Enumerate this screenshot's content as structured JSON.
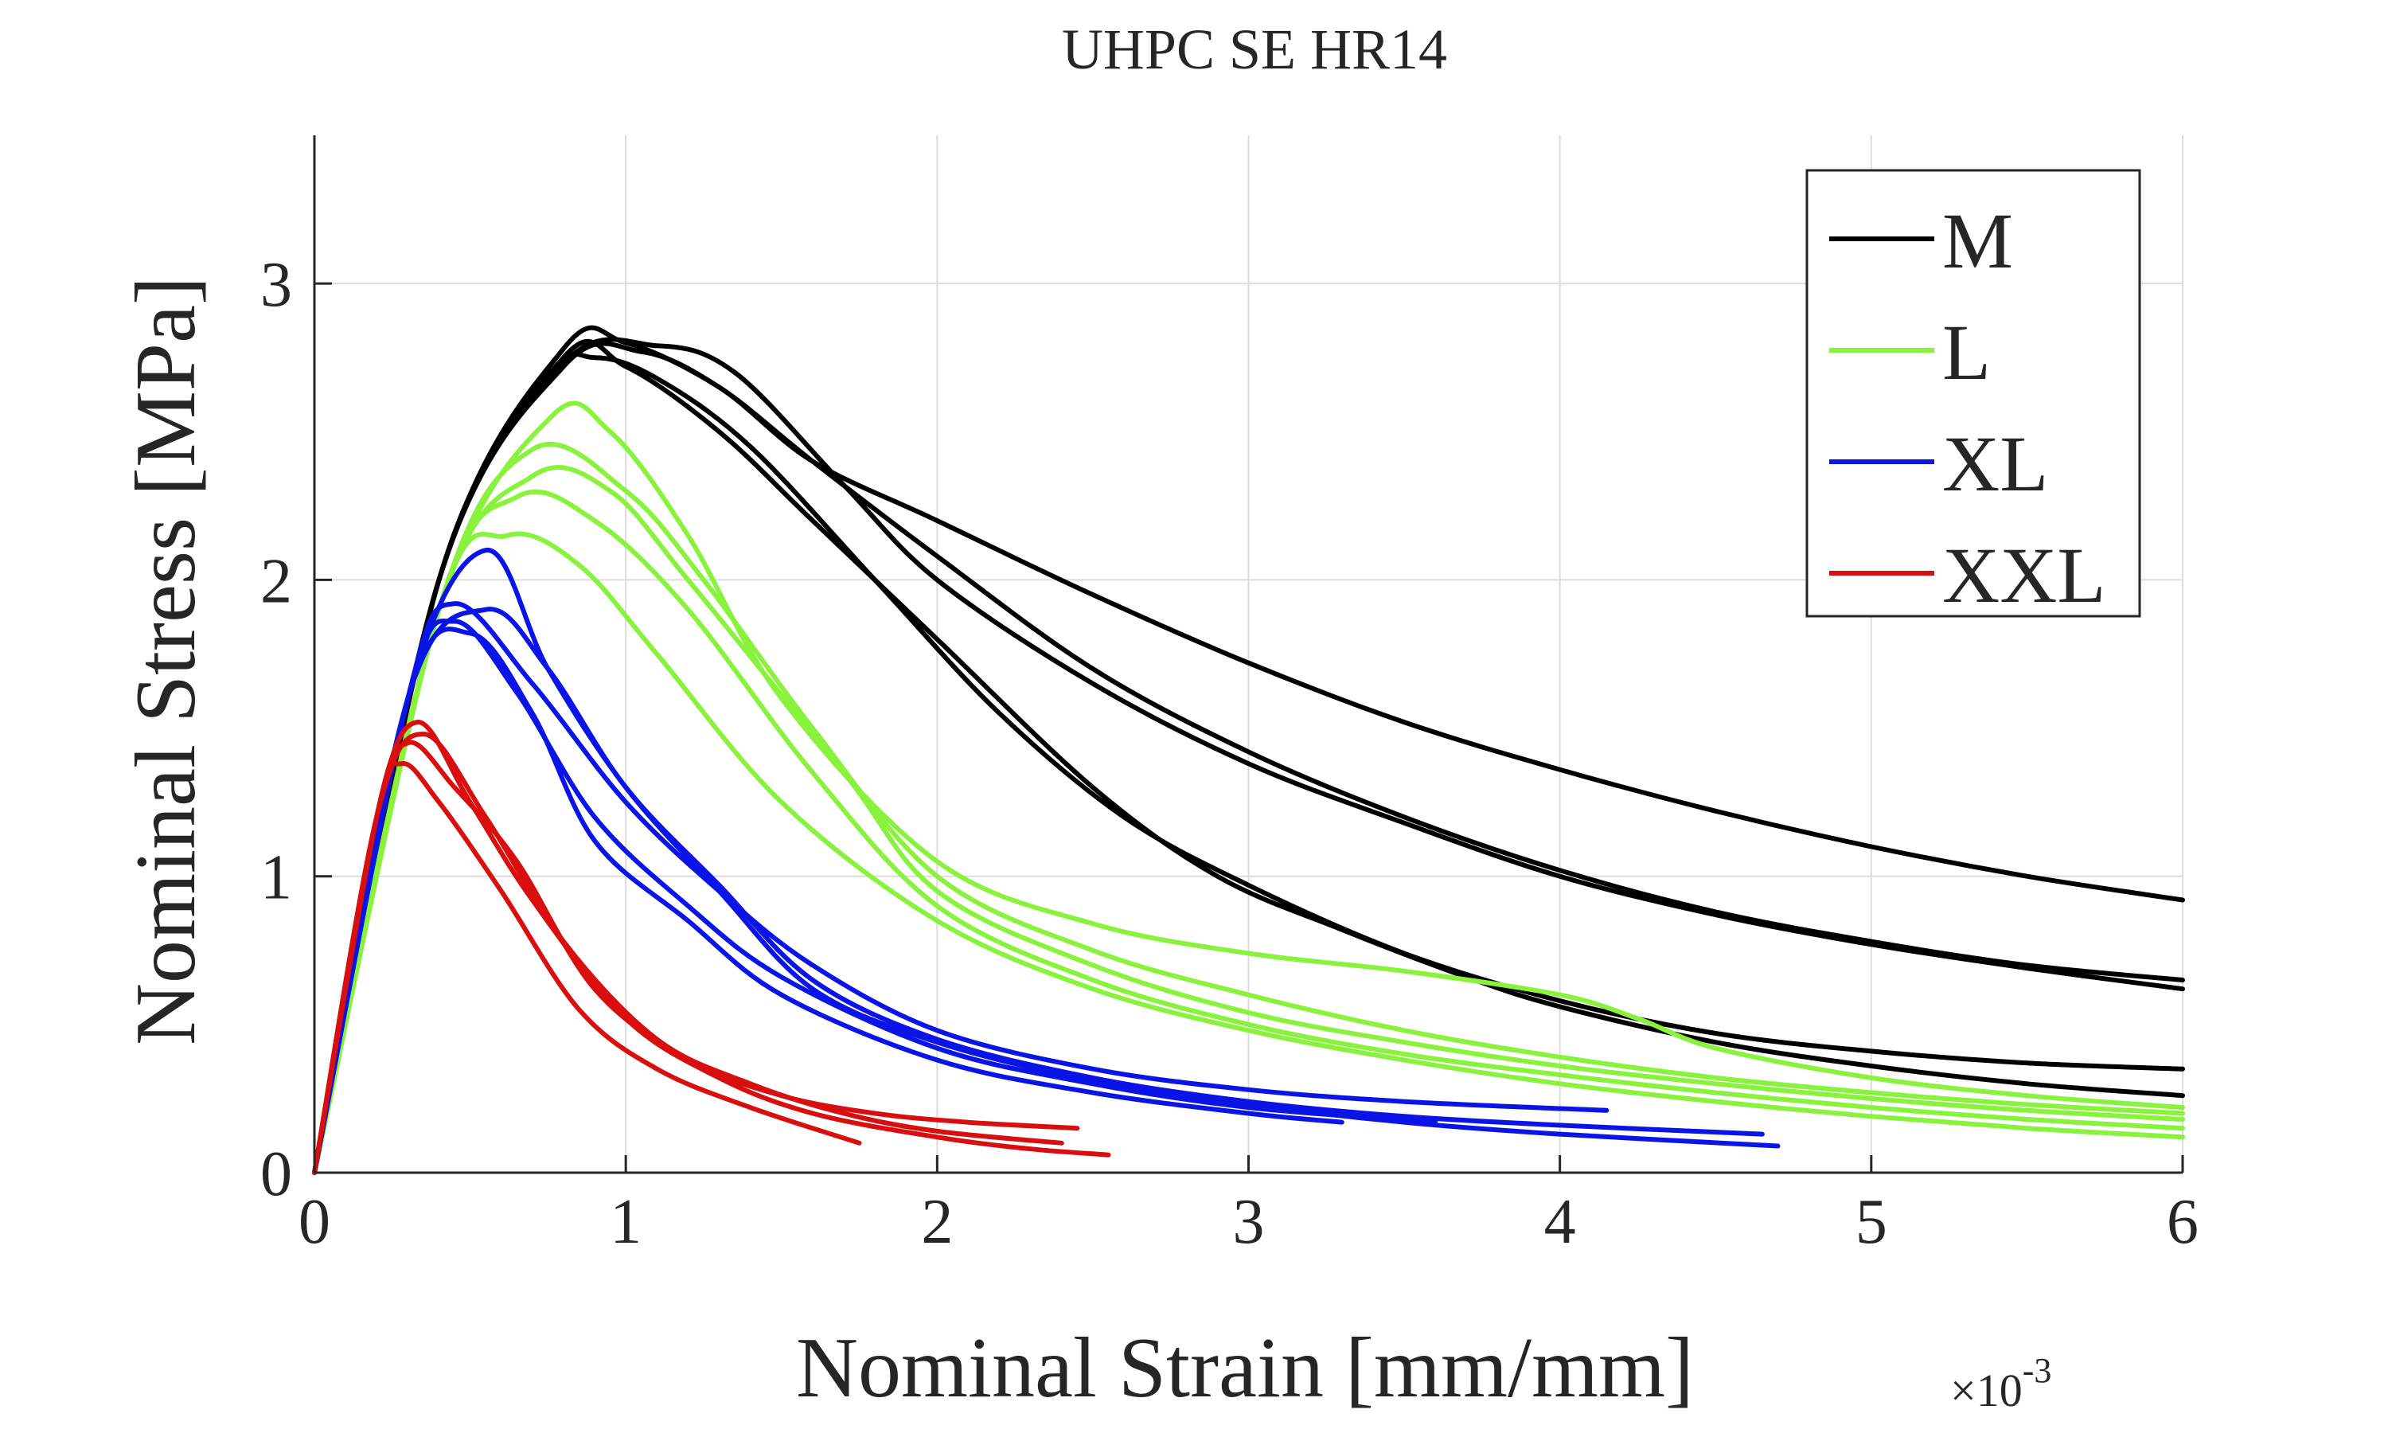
{
  "chart_data": {
    "type": "line",
    "title": "UHPC SE HR14",
    "xlabel": "Nominal Strain [mm/mm]",
    "xlabel_multiplier": {
      "base": "×10",
      "exponent": "-3"
    },
    "ylabel": "Nominal Stress [MPa]",
    "xlim": [
      0,
      6
    ],
    "ylim": [
      0,
      3.5
    ],
    "x_unit_scale": "1e-3",
    "xticks": [
      0,
      1,
      2,
      3,
      4,
      5,
      6
    ],
    "xtick_labels": [
      "0",
      "1",
      "2",
      "3",
      "4",
      "5",
      "6"
    ],
    "yticks": [
      0,
      1,
      2,
      3
    ],
    "ytick_labels": [
      "0",
      "1",
      "2",
      "3"
    ],
    "grid": true,
    "legend_position": "top-right",
    "series": [
      {
        "name": "M",
        "color": "#000000",
        "show_in_legend": true,
        "x": [
          0,
          0.4,
          0.8,
          1.0,
          1.3,
          1.6,
          2.0,
          2.5,
          3.0,
          3.5,
          4.0,
          4.5,
          5.0,
          5.5,
          6.0
        ],
        "y": [
          0,
          2.0,
          2.78,
          2.8,
          2.65,
          2.4,
          2.2,
          1.95,
          1.72,
          1.52,
          1.36,
          1.22,
          1.1,
          1.0,
          0.92
        ]
      },
      {
        "name": "M",
        "color": "#000000",
        "show_in_legend": false,
        "x": [
          0,
          0.4,
          0.8,
          1.05,
          1.3,
          1.6,
          2.0,
          2.5,
          3.0,
          3.5,
          4.0,
          4.5,
          5.0,
          5.5,
          6.0
        ],
        "y": [
          0,
          2.0,
          2.72,
          2.77,
          2.65,
          2.4,
          2.08,
          1.7,
          1.42,
          1.2,
          1.02,
          0.88,
          0.78,
          0.7,
          0.65
        ]
      },
      {
        "name": "M",
        "color": "#000000",
        "show_in_legend": false,
        "x": [
          0,
          0.4,
          0.8,
          1.1,
          1.35,
          1.7,
          2.0,
          2.5,
          3.0,
          3.5,
          4.0,
          4.5,
          5.0,
          5.5,
          6.0
        ],
        "y": [
          0,
          2.0,
          2.73,
          2.79,
          2.7,
          2.32,
          2.0,
          1.65,
          1.38,
          1.18,
          1.0,
          0.87,
          0.77,
          0.69,
          0.62
        ]
      },
      {
        "name": "M",
        "color": "#000000",
        "show_in_legend": false,
        "x": [
          0,
          0.4,
          0.75,
          0.9,
          1.1,
          1.4,
          1.8,
          2.2,
          2.6,
          3.0,
          3.5,
          4.0,
          4.5,
          5.0,
          5.5,
          6.0
        ],
        "y": [
          0,
          2.0,
          2.68,
          2.75,
          2.68,
          2.45,
          2.0,
          1.55,
          1.2,
          0.97,
          0.74,
          0.58,
          0.47,
          0.41,
          0.37,
          0.35
        ]
      },
      {
        "name": "M",
        "color": "#000000",
        "show_in_legend": false,
        "x": [
          0,
          0.4,
          0.8,
          1.0,
          1.3,
          1.6,
          2.0,
          2.5,
          2.9,
          3.3,
          3.7,
          4.0,
          4.5,
          5.0,
          5.5,
          6.0
        ],
        "y": [
          0,
          2.0,
          2.75,
          2.72,
          2.5,
          2.2,
          1.8,
          1.3,
          1.0,
          0.82,
          0.66,
          0.56,
          0.44,
          0.36,
          0.3,
          0.26
        ]
      },
      {
        "name": "L",
        "color": "#88f23c",
        "show_in_legend": true,
        "x": [
          0,
          0.4,
          0.76,
          0.95,
          1.2,
          1.5,
          2.0,
          2.5,
          3.0,
          3.5,
          4.0,
          4.25,
          4.5,
          5.0,
          5.5,
          6.0
        ],
        "y": [
          0,
          1.9,
          2.55,
          2.5,
          2.15,
          1.6,
          1.05,
          0.84,
          0.74,
          0.68,
          0.6,
          0.52,
          0.42,
          0.32,
          0.26,
          0.22
        ]
      },
      {
        "name": "L",
        "color": "#88f23c",
        "show_in_legend": false,
        "x": [
          0,
          0.4,
          0.7,
          1.0,
          1.25,
          1.6,
          2.0,
          2.5,
          3.0,
          3.5,
          4.0,
          4.5,
          5.0,
          5.5,
          6.0
        ],
        "y": [
          0,
          1.9,
          2.44,
          2.3,
          2.0,
          1.5,
          1.0,
          0.75,
          0.6,
          0.48,
          0.39,
          0.32,
          0.27,
          0.23,
          0.2
        ]
      },
      {
        "name": "L",
        "color": "#88f23c",
        "show_in_legend": false,
        "x": [
          0,
          0.4,
          0.7,
          0.95,
          1.2,
          1.7,
          2.0,
          2.5,
          3.0,
          3.5,
          4.0,
          4.5,
          5.0,
          5.5,
          6.0
        ],
        "y": [
          0,
          1.9,
          2.35,
          2.3,
          2.0,
          1.35,
          0.95,
          0.7,
          0.54,
          0.44,
          0.36,
          0.3,
          0.25,
          0.21,
          0.18
        ]
      },
      {
        "name": "L",
        "color": "#88f23c",
        "show_in_legend": false,
        "x": [
          0,
          0.4,
          0.65,
          0.9,
          1.2,
          1.6,
          2.0,
          2.5,
          3.0,
          3.5,
          4.0,
          4.5,
          5.0,
          5.5,
          6.0
        ],
        "y": [
          0,
          1.9,
          2.28,
          2.2,
          1.9,
          1.35,
          0.9,
          0.65,
          0.5,
          0.4,
          0.33,
          0.27,
          0.22,
          0.18,
          0.15
        ]
      },
      {
        "name": "L",
        "color": "#88f23c",
        "show_in_legend": false,
        "x": [
          0,
          0.4,
          0.62,
          0.85,
          1.1,
          1.5,
          2.0,
          2.5,
          3.0,
          3.5,
          4.0,
          4.5,
          5.0,
          5.5,
          6.0
        ],
        "y": [
          0,
          1.9,
          2.15,
          2.05,
          1.75,
          1.25,
          0.85,
          0.62,
          0.48,
          0.38,
          0.3,
          0.24,
          0.19,
          0.15,
          0.12
        ]
      },
      {
        "name": "XL",
        "color": "#0a14e6",
        "show_in_legend": true,
        "x": [
          0,
          0.3,
          0.55,
          0.75,
          1.0,
          1.3,
          1.6,
          2.0,
          2.5,
          3.0,
          3.5,
          4.0,
          4.7
        ],
        "y": [
          0,
          1.6,
          2.1,
          1.7,
          1.3,
          0.95,
          0.62,
          0.44,
          0.31,
          0.23,
          0.17,
          0.13,
          0.09
        ]
      },
      {
        "name": "XL",
        "color": "#0a14e6",
        "show_in_legend": false,
        "x": [
          0,
          0.3,
          0.45,
          0.7,
          1.0,
          1.3,
          1.6,
          2.0,
          2.5,
          3.0,
          3.5,
          4.15
        ],
        "y": [
          0,
          1.6,
          1.92,
          1.65,
          1.25,
          0.95,
          0.7,
          0.48,
          0.35,
          0.28,
          0.24,
          0.21
        ]
      },
      {
        "name": "XL",
        "color": "#0a14e6",
        "show_in_legend": false,
        "x": [
          0,
          0.3,
          0.55,
          0.75,
          1.0,
          1.3,
          1.6,
          2.0,
          2.5,
          3.0,
          3.5,
          4.0,
          4.65
        ],
        "y": [
          0,
          1.6,
          1.9,
          1.7,
          1.3,
          0.97,
          0.65,
          0.45,
          0.32,
          0.24,
          0.19,
          0.16,
          0.13
        ]
      },
      {
        "name": "XL",
        "color": "#0a14e6",
        "show_in_legend": false,
        "x": [
          0,
          0.3,
          0.45,
          0.65,
          0.9,
          1.2,
          1.5,
          2.0,
          2.5,
          3.0,
          3.6
        ],
        "y": [
          0,
          1.6,
          1.86,
          1.62,
          1.2,
          0.9,
          0.66,
          0.42,
          0.3,
          0.22,
          0.17
        ]
      },
      {
        "name": "XL",
        "color": "#0a14e6",
        "show_in_legend": false,
        "x": [
          0,
          0.3,
          0.5,
          0.7,
          0.9,
          1.2,
          1.5,
          2.0,
          2.5,
          3.0,
          3.3
        ],
        "y": [
          0,
          1.6,
          1.82,
          1.55,
          1.12,
          0.85,
          0.6,
          0.38,
          0.27,
          0.2,
          0.17
        ]
      },
      {
        "name": "XXL",
        "color": "#d90f0f",
        "show_in_legend": true,
        "x": [
          0,
          0.2,
          0.33,
          0.5,
          0.7,
          1.0,
          1.3,
          1.6,
          2.0,
          2.3,
          2.55
        ],
        "y": [
          0,
          1.2,
          1.52,
          1.25,
          0.92,
          0.52,
          0.32,
          0.2,
          0.12,
          0.08,
          0.06
        ]
      },
      {
        "name": "XXL",
        "color": "#d90f0f",
        "show_in_legend": false,
        "x": [
          0,
          0.2,
          0.3,
          0.45,
          0.65,
          0.9,
          1.2,
          1.5,
          1.8,
          2.1,
          2.45
        ],
        "y": [
          0,
          1.2,
          1.45,
          1.3,
          1.05,
          0.62,
          0.38,
          0.26,
          0.2,
          0.17,
          0.15
        ]
      },
      {
        "name": "XXL",
        "color": "#d90f0f",
        "show_in_legend": false,
        "x": [
          0,
          0.2,
          0.35,
          0.55,
          0.8,
          1.1,
          1.4,
          1.7,
          2.0,
          2.4
        ],
        "y": [
          0,
          1.2,
          1.48,
          1.2,
          0.78,
          0.45,
          0.3,
          0.2,
          0.14,
          0.1
        ]
      },
      {
        "name": "XXL",
        "color": "#d90f0f",
        "show_in_legend": false,
        "x": [
          0,
          0.2,
          0.28,
          0.4,
          0.6,
          0.85,
          1.1,
          1.4,
          1.75
        ],
        "y": [
          0,
          1.2,
          1.38,
          1.25,
          0.95,
          0.55,
          0.35,
          0.22,
          0.1
        ]
      }
    ]
  }
}
